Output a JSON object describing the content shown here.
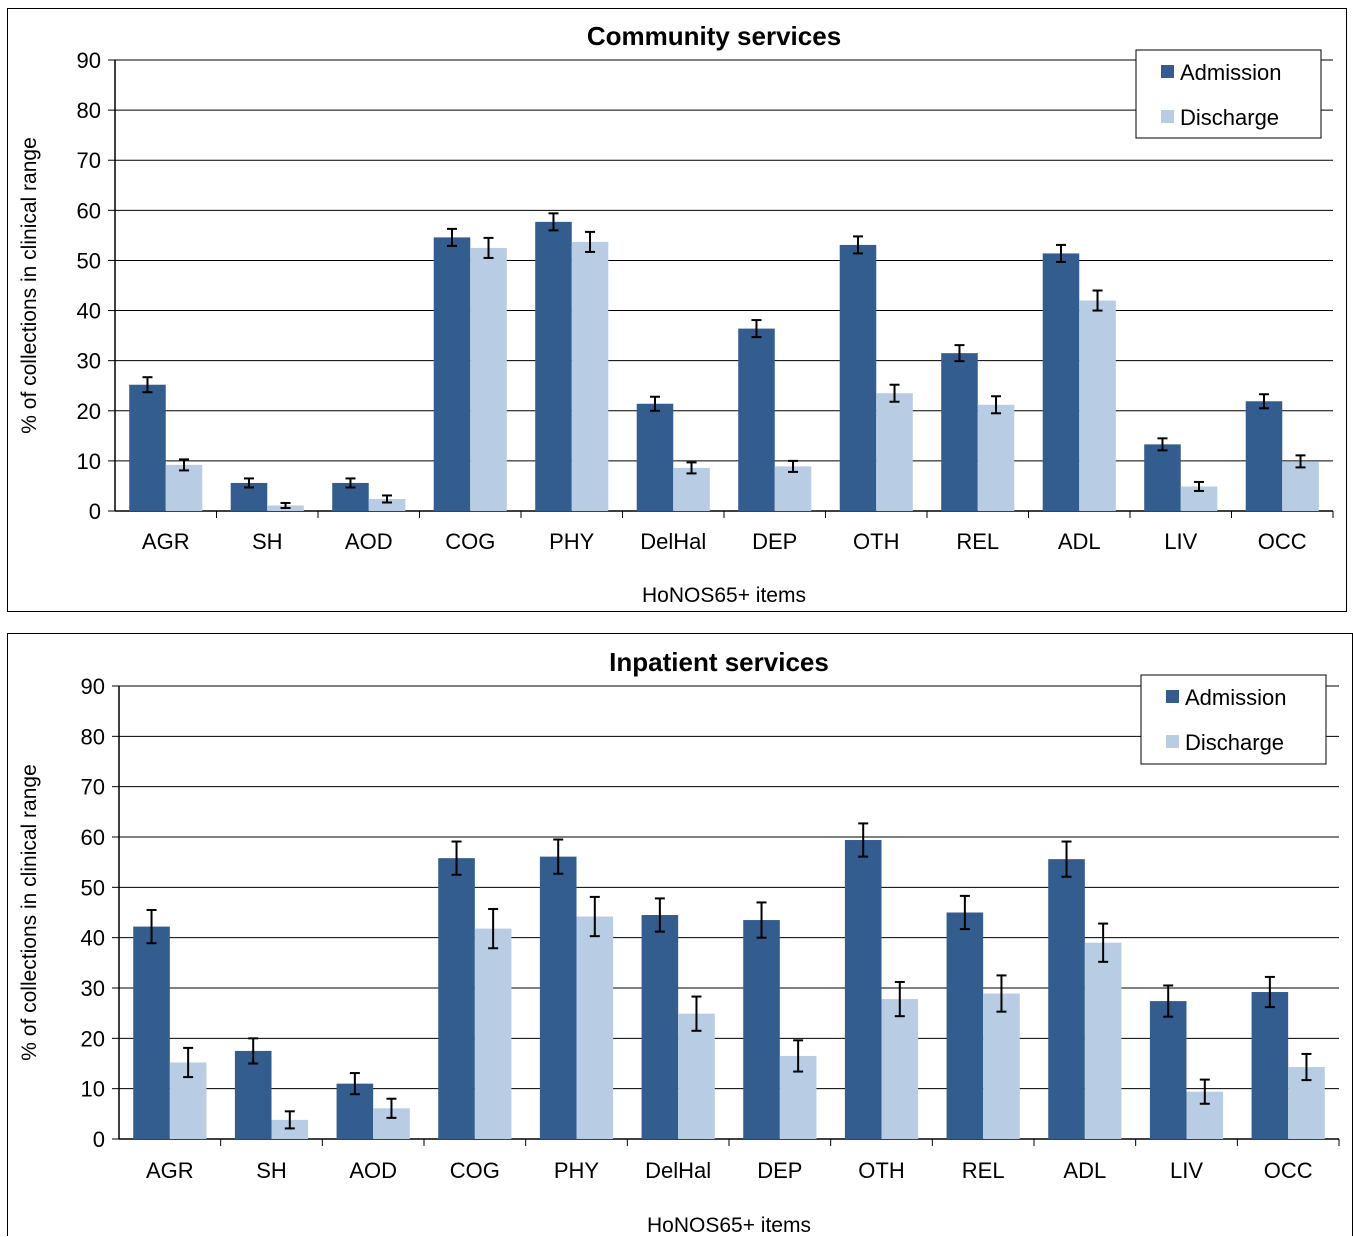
{
  "colors": {
    "admission": "#335D8E",
    "discharge": "#B8CCE4",
    "grid": "#000000",
    "error_bar": "#000000"
  },
  "chart_data": [
    {
      "type": "bar",
      "title": "Community services",
      "xlabel": "HoNOS65+ items",
      "ylabel": "% of collections in clinical range",
      "ylim": [
        0,
        90
      ],
      "yticks": [
        "0",
        "10",
        "20",
        "30",
        "40",
        "50",
        "60",
        "70",
        "80",
        "90"
      ],
      "grid": true,
      "legend_position": "top-right",
      "categories": [
        "AGR",
        "SH",
        "AOD",
        "COG",
        "PHY",
        "DelHal",
        "DEP",
        "OTH",
        "REL",
        "ADL",
        "LIV",
        "OCC"
      ],
      "series": [
        {
          "name": "Admission",
          "values": [
            25.2,
            5.6,
            5.6,
            54.6,
            57.7,
            21.4,
            36.4,
            53.1,
            31.5,
            51.4,
            13.3,
            21.9
          ],
          "error": [
            1.5,
            0.9,
            0.9,
            1.7,
            1.7,
            1.4,
            1.7,
            1.7,
            1.6,
            1.7,
            1.2,
            1.4
          ]
        },
        {
          "name": "Discharge",
          "values": [
            9.2,
            1.1,
            2.4,
            52.5,
            53.7,
            8.6,
            8.9,
            23.5,
            21.2,
            42.0,
            4.9,
            9.9
          ],
          "error": [
            1.1,
            0.5,
            0.7,
            2.0,
            2.0,
            1.1,
            1.1,
            1.7,
            1.7,
            2.0,
            0.9,
            1.2
          ]
        }
      ]
    },
    {
      "type": "bar",
      "title": "Inpatient services",
      "xlabel": "HoNOS65+ items",
      "ylabel": "% of collections in clinical range",
      "ylim": [
        0,
        90
      ],
      "yticks": [
        "0",
        "10",
        "20",
        "30",
        "40",
        "50",
        "60",
        "70",
        "80",
        "90"
      ],
      "grid": true,
      "legend_position": "top-right",
      "categories": [
        "AGR",
        "SH",
        "AOD",
        "COG",
        "PHY",
        "DelHal",
        "DEP",
        "OTH",
        "REL",
        "ADL",
        "LIV",
        "OCC"
      ],
      "series": [
        {
          "name": "Admission",
          "values": [
            42.2,
            17.5,
            11.0,
            55.8,
            56.1,
            44.5,
            43.5,
            59.4,
            45.0,
            55.6,
            27.4,
            29.2
          ],
          "error": [
            3.3,
            2.5,
            2.1,
            3.3,
            3.4,
            3.3,
            3.5,
            3.3,
            3.3,
            3.5,
            3.1,
            3.0
          ]
        },
        {
          "name": "Discharge",
          "values": [
            15.2,
            3.8,
            6.1,
            41.8,
            44.2,
            24.9,
            16.5,
            27.8,
            28.9,
            39.0,
            9.4,
            14.3
          ],
          "error": [
            2.9,
            1.7,
            1.9,
            3.9,
            3.9,
            3.4,
            3.1,
            3.4,
            3.6,
            3.8,
            2.4,
            2.6
          ]
        }
      ]
    }
  ]
}
